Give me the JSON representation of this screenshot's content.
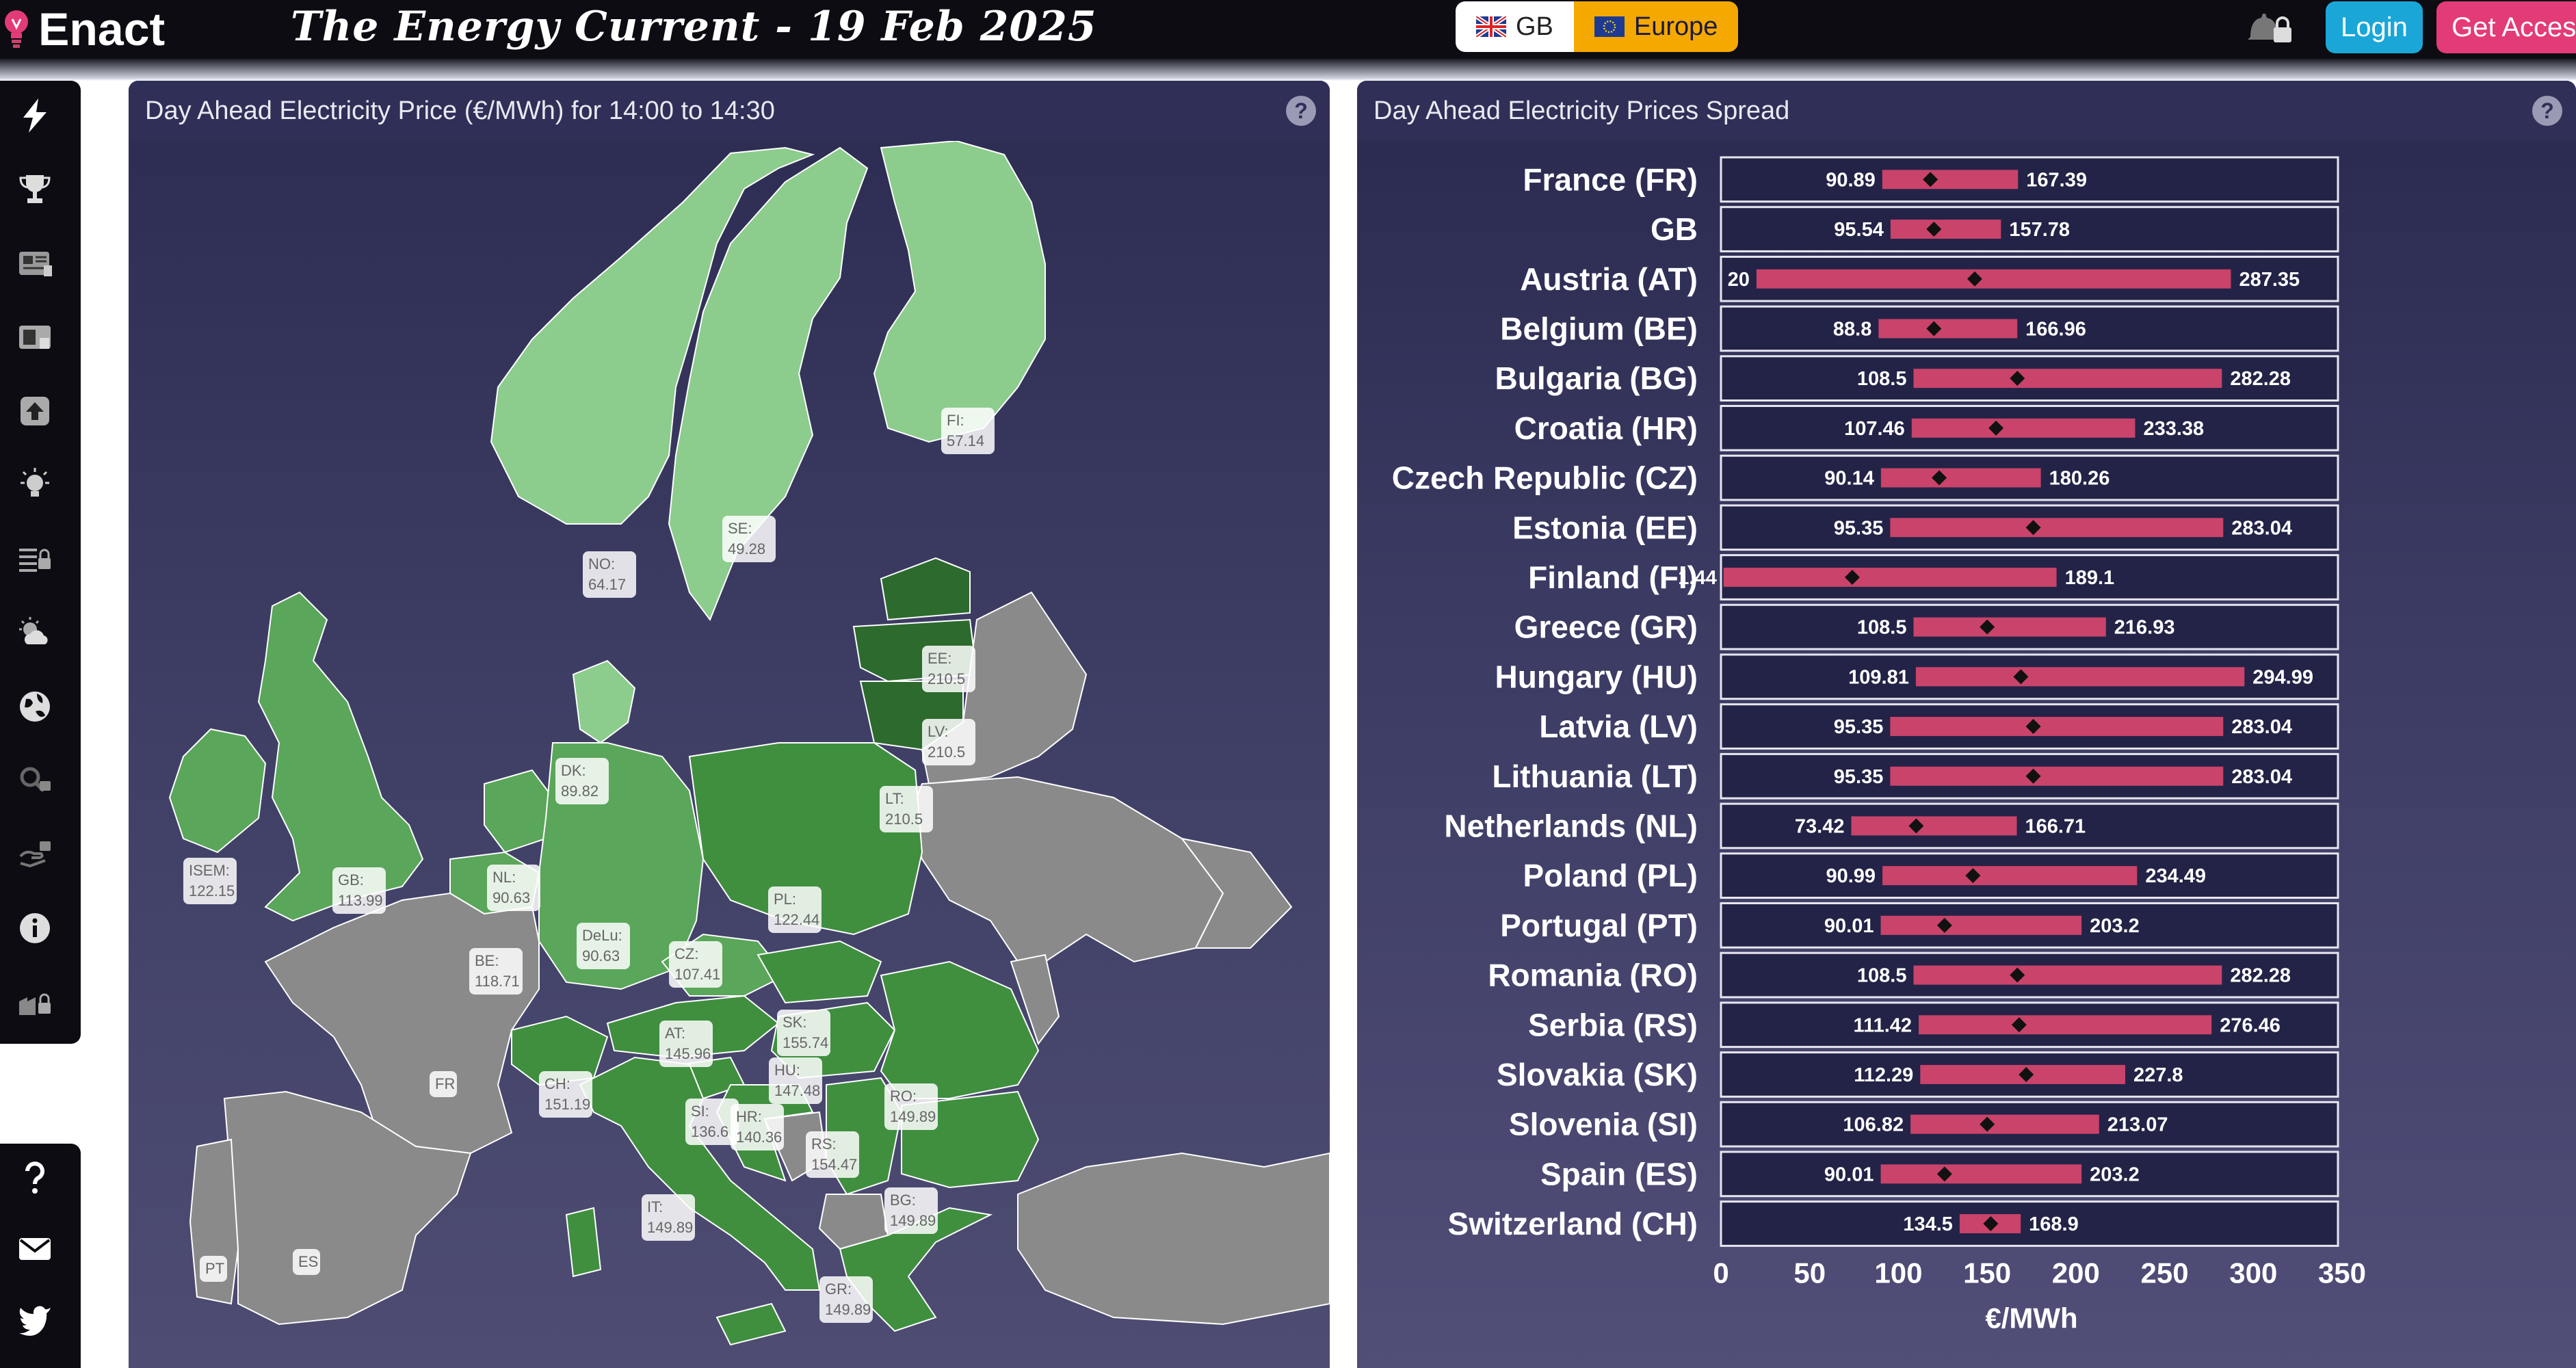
{
  "app": {
    "logo_text": "Enact",
    "title": "The Energy Current - 19 Feb 2025"
  },
  "region_toggle": {
    "gb_label": "GB",
    "europe_label": "Europe",
    "selected": "Europe"
  },
  "header_buttons": {
    "login": "Login",
    "get_access": "Get Access"
  },
  "colors": {
    "accent_blue": "#1aa7d8",
    "accent_pink": "#e33b77",
    "europe_orange": "#f5a800",
    "bar": "#c9436a"
  },
  "sidebar": {
    "icons": [
      "lightning-icon",
      "trophy-icon",
      "newspaper-icon",
      "panel-icon",
      "upload-arrow-icon",
      "lightbulb-icon",
      "list-lock-icon",
      "weather-icon",
      "globe-icon",
      "search-lock-icon",
      "hand-lock-icon",
      "info-icon",
      "factory-lock-icon"
    ],
    "bottom_icons": [
      "help-icon",
      "mail-icon",
      "twitter-icon"
    ]
  },
  "map_panel": {
    "title": "Day Ahead Electricity Price (€/MWh) for 14:00 to 14:30",
    "help": "?",
    "labels": [
      {
        "code": "FI:",
        "value": "57.14"
      },
      {
        "code": "SE:",
        "value": "49.28"
      },
      {
        "code": "NO:",
        "value": "64.17"
      },
      {
        "code": "EE:",
        "value": "210.5"
      },
      {
        "code": "LV:",
        "value": "210.5"
      },
      {
        "code": "LT:",
        "value": "210.5"
      },
      {
        "code": "DK:",
        "value": "89.82"
      },
      {
        "code": "ISEM:",
        "value": "122.15"
      },
      {
        "code": "GB:",
        "value": "113.99"
      },
      {
        "code": "NL:",
        "value": "90.63"
      },
      {
        "code": "BE:",
        "value": "118.71"
      },
      {
        "code": "DeLu:",
        "value": "90.63"
      },
      {
        "code": "PL:",
        "value": "122.44"
      },
      {
        "code": "CZ:",
        "value": "107.41"
      },
      {
        "code": "SK:",
        "value": "155.74"
      },
      {
        "code": "AT:",
        "value": "145.96"
      },
      {
        "code": "HU:",
        "value": "147.48"
      },
      {
        "code": "CH:",
        "value": "151.19"
      },
      {
        "code": "SI:",
        "value": "136.6"
      },
      {
        "code": "HR:",
        "value": "140.36"
      },
      {
        "code": "RS:",
        "value": "154.47"
      },
      {
        "code": "RO:",
        "value": "149.89"
      },
      {
        "code": "BG:",
        "value": "149.89"
      },
      {
        "code": "IT:",
        "value": "149.89"
      },
      {
        "code": "GR:",
        "value": "149.89"
      },
      {
        "code": "FR",
        "value": ""
      },
      {
        "code": "ES",
        "value": ""
      },
      {
        "code": "PT",
        "value": ""
      }
    ]
  },
  "spread_panel": {
    "title": "Day Ahead Electricity Prices Spread",
    "help": "?",
    "chart_data": {
      "type": "bar",
      "xlabel": "€/MWh",
      "xlim": [
        0,
        350
      ],
      "xticks": [
        0,
        50,
        100,
        150,
        200,
        250,
        300,
        350
      ],
      "series": [
        {
          "name": "France (FR)",
          "min": 90.89,
          "max": 167.39,
          "marker": 118
        },
        {
          "name": "GB",
          "min": 95.54,
          "max": 157.78,
          "marker": 120
        },
        {
          "name": "Austria (AT)",
          "min": 20,
          "max": 287.35,
          "marker": 143
        },
        {
          "name": "Belgium (BE)",
          "min": 88.8,
          "max": 166.96,
          "marker": 120
        },
        {
          "name": "Bulgaria (BG)",
          "min": 108.5,
          "max": 282.28,
          "marker": 167
        },
        {
          "name": "Croatia (HR)",
          "min": 107.46,
          "max": 233.38,
          "marker": 155
        },
        {
          "name": "Czech Republic (CZ)",
          "min": 90.14,
          "max": 180.26,
          "marker": 123
        },
        {
          "name": "Estonia (EE)",
          "min": 95.35,
          "max": 283.04,
          "marker": 176
        },
        {
          "name": "Finland (FI)",
          "min": 1.44,
          "max": 189.1,
          "marker": 74
        },
        {
          "name": "Greece (GR)",
          "min": 108.5,
          "max": 216.93,
          "marker": 150
        },
        {
          "name": "Hungary (HU)",
          "min": 109.81,
          "max": 294.99,
          "marker": 169
        },
        {
          "name": "Latvia (LV)",
          "min": 95.35,
          "max": 283.04,
          "marker": 176
        },
        {
          "name": "Lithuania (LT)",
          "min": 95.35,
          "max": 283.04,
          "marker": 176
        },
        {
          "name": "Netherlands (NL)",
          "min": 73.42,
          "max": 166.71,
          "marker": 110
        },
        {
          "name": "Poland (PL)",
          "min": 90.99,
          "max": 234.49,
          "marker": 142
        },
        {
          "name": "Portugal (PT)",
          "min": 90.01,
          "max": 203.2,
          "marker": 126
        },
        {
          "name": "Romania (RO)",
          "min": 108.5,
          "max": 282.28,
          "marker": 167
        },
        {
          "name": "Serbia (RS)",
          "min": 111.42,
          "max": 276.46,
          "marker": 168
        },
        {
          "name": "Slovakia (SK)",
          "min": 112.29,
          "max": 227.8,
          "marker": 172
        },
        {
          "name": "Slovenia (SI)",
          "min": 106.82,
          "max": 213.07,
          "marker": 150
        },
        {
          "name": "Spain (ES)",
          "min": 90.01,
          "max": 203.2,
          "marker": 126
        },
        {
          "name": "Switzerland (CH)",
          "min": 134.5,
          "max": 168.9,
          "marker": 152
        }
      ],
      "min_labels": [
        "90.89",
        "95.54",
        "20",
        "88.8",
        "108.5",
        "107.46",
        "90.14",
        "95.35",
        "1.44",
        "108.5",
        "109.81",
        "95.35",
        "95.35",
        "73.42",
        "90.99",
        "90.01",
        "108.5",
        "111.42",
        "112.29",
        "106.82",
        "90.01",
        "134.5"
      ],
      "max_labels": [
        "167.39",
        "157.78",
        "287.35",
        "166.96",
        "282.28",
        "233.38",
        "180.26",
        "283.04",
        "189.1",
        "216.93",
        "294.99",
        "283.04",
        "283.04",
        "166.71",
        "234.49",
        "203.2",
        "282.28",
        "276.46",
        "227.8",
        "213.07",
        "203.2",
        "168.9"
      ]
    }
  }
}
